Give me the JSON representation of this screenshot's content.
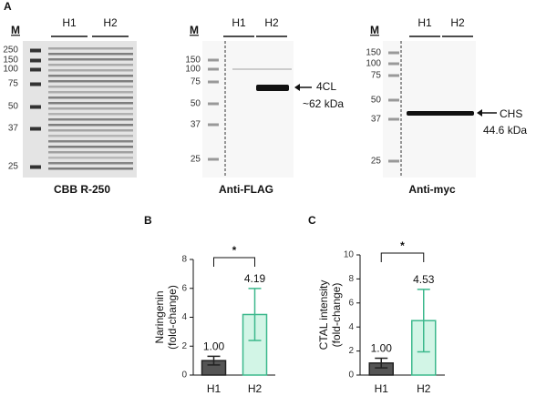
{
  "panel_a": {
    "label": "A",
    "gels": [
      {
        "marker": "M",
        "lanes": [
          "H1",
          "H2"
        ],
        "sizes": [
          "250",
          "150",
          "100",
          "75",
          "50",
          "37",
          "25"
        ],
        "caption": "CBB R-250"
      },
      {
        "marker": "M",
        "lanes": [
          "H1",
          "H2"
        ],
        "sizes": [
          "150",
          "100",
          "75",
          "50",
          "37",
          "25"
        ],
        "caption": "Anti-FLAG",
        "band_label": "4CL",
        "band_size": "~62 kDa"
      },
      {
        "marker": "M",
        "lanes": [
          "H1",
          "H2"
        ],
        "sizes": [
          "150",
          "100",
          "75",
          "50",
          "37",
          "25"
        ],
        "caption": "Anti-myc",
        "band_label": "CHS",
        "band_size": "44.6 kDa"
      }
    ]
  },
  "chart_data": [
    {
      "type": "bar",
      "panel": "B",
      "ylabel": [
        "Naringenin",
        "(fold-change)"
      ],
      "categories": [
        "H1",
        "H2"
      ],
      "values": [
        1.0,
        4.19
      ],
      "value_labels": [
        "1.00",
        "4.19"
      ],
      "errors": [
        0.3,
        1.8
      ],
      "colors": [
        "#555555",
        "#d2f5e6"
      ],
      "edge_colors": [
        "#222222",
        "#3cb88c"
      ],
      "ylim": [
        0,
        8
      ],
      "yticks": [
        0,
        2,
        4,
        6,
        8
      ],
      "annotation": "*"
    },
    {
      "type": "bar",
      "panel": "C",
      "ylabel": [
        "CTAL intensity",
        "(fold-change)"
      ],
      "categories": [
        "H1",
        "H2"
      ],
      "values": [
        1.0,
        4.53
      ],
      "value_labels": [
        "1.00",
        "4.53"
      ],
      "errors": [
        0.4,
        2.6
      ],
      "colors": [
        "#555555",
        "#d2f5e6"
      ],
      "edge_colors": [
        "#222222",
        "#3cb88c"
      ],
      "ylim": [
        0,
        10
      ],
      "yticks": [
        0,
        2,
        4,
        6,
        8,
        10
      ],
      "annotation": "*"
    }
  ]
}
